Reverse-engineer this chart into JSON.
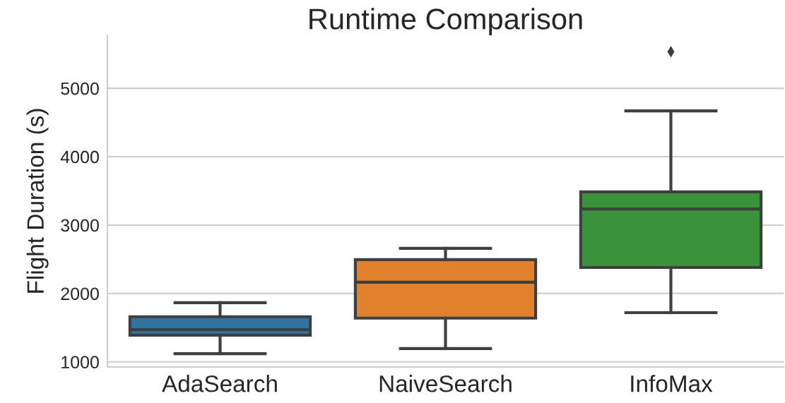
{
  "chart_data": {
    "type": "box",
    "title": "Runtime Comparison",
    "ylabel": "Flight Duration (s)",
    "categories": [
      "AdaSearch",
      "NaiveSearch",
      "InfoMax"
    ],
    "colors": [
      "#3274a1",
      "#e1812c",
      "#3a923a"
    ],
    "boxes": [
      {
        "low": 1120,
        "q1": 1390,
        "median": 1470,
        "q3": 1660,
        "high": 1865
      },
      {
        "low": 1195,
        "q1": 1640,
        "median": 2165,
        "q3": 2495,
        "high": 2660
      },
      {
        "low": 1720,
        "q1": 2380,
        "median": 3235,
        "q3": 3485,
        "high": 4670,
        "outliers": [
          5535
        ]
      }
    ],
    "ylim": [
      925,
      5775
    ],
    "yticks": [
      1000,
      2000,
      3000,
      4000,
      5000
    ],
    "grid": "y",
    "marker": "diamond"
  }
}
